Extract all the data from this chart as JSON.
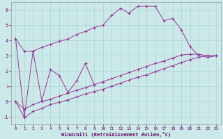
{
  "xlabel": "Windchill (Refroidissement éolien,°C)",
  "ylim": [
    -1.5,
    6.5
  ],
  "xlim": [
    -0.5,
    23.5
  ],
  "yticks": [
    -1,
    0,
    1,
    2,
    3,
    4,
    5,
    6
  ],
  "x_ticks": [
    0,
    1,
    2,
    3,
    4,
    5,
    6,
    7,
    8,
    9,
    10,
    11,
    12,
    13,
    14,
    15,
    16,
    17,
    18,
    19,
    20,
    21,
    22,
    23
  ],
  "bg_color": "#cce9e9",
  "grid_color": "#aad4d4",
  "line_color": "#993399",
  "series_zigzag_x": [
    0,
    1,
    2,
    3,
    4,
    5,
    6,
    7,
    8,
    9
  ],
  "series_zigzag_y": [
    4.1,
    -1.0,
    3.3,
    0.05,
    2.1,
    1.7,
    0.6,
    1.35,
    2.5,
    1.1
  ],
  "series_upper_x": [
    0,
    1,
    2,
    3,
    4,
    5,
    6,
    7,
    8,
    9,
    10,
    11,
    12,
    13,
    14,
    15,
    16,
    17,
    18,
    19,
    20,
    21,
    22,
    23
  ],
  "series_upper_y": [
    4.1,
    3.3,
    3.3,
    3.55,
    3.75,
    3.95,
    4.1,
    4.4,
    4.6,
    4.85,
    5.0,
    5.65,
    6.1,
    5.8,
    6.25,
    6.25,
    6.25,
    5.3,
    5.45,
    4.7,
    3.6,
    3.0,
    2.9,
    3.0
  ],
  "series_lower_x": [
    0,
    1,
    2,
    3,
    4,
    5,
    6,
    7,
    8,
    9,
    10,
    11,
    12,
    13,
    14,
    15,
    16,
    17,
    18,
    19,
    20,
    21,
    22,
    23
  ],
  "series_lower_y": [
    0.0,
    -1.05,
    -0.65,
    -0.45,
    -0.2,
    -0.05,
    0.1,
    0.3,
    0.5,
    0.65,
    0.8,
    1.0,
    1.2,
    1.4,
    1.6,
    1.75,
    1.95,
    2.15,
    2.35,
    2.55,
    2.75,
    2.9,
    3.0,
    3.0
  ],
  "series_mid_x": [
    0,
    1,
    2,
    3,
    4,
    5,
    6,
    7,
    8,
    9,
    10,
    11,
    12,
    13,
    14,
    15,
    16,
    17,
    18,
    19,
    20,
    21,
    22,
    23
  ],
  "series_mid_y": [
    0.0,
    -0.5,
    -0.2,
    0.0,
    0.15,
    0.35,
    0.55,
    0.75,
    0.9,
    1.1,
    1.3,
    1.5,
    1.7,
    1.9,
    2.1,
    2.3,
    2.5,
    2.65,
    2.85,
    3.05,
    3.1,
    3.1,
    3.0,
    3.0
  ]
}
